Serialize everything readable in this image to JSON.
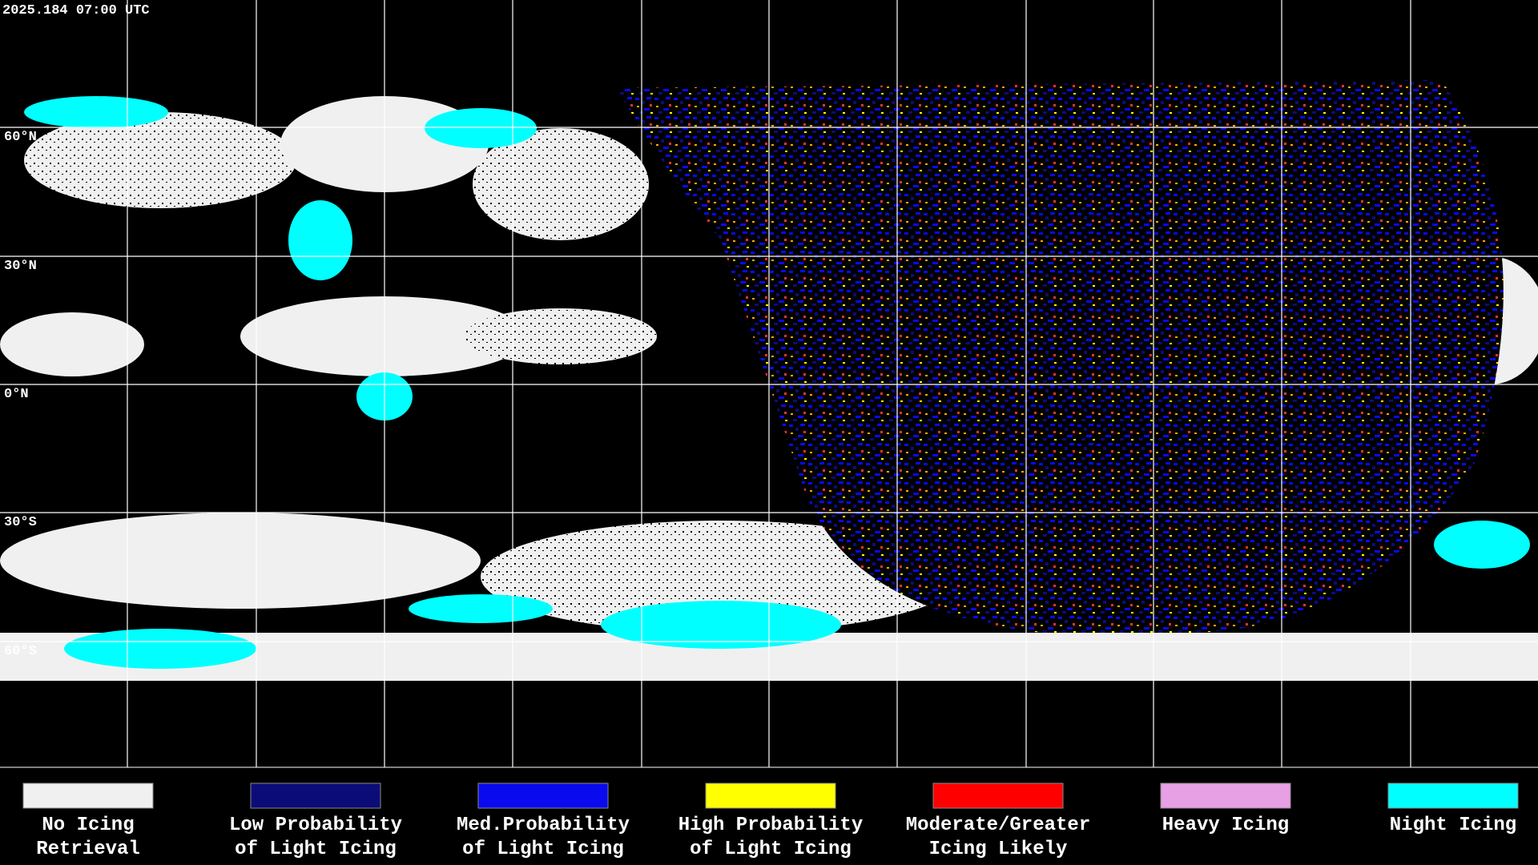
{
  "header": {
    "timestamp": "2025.184 07:00 UTC"
  },
  "map": {
    "lat_labels": [
      "60°N",
      "30°N",
      "0°N",
      "30°S",
      "60°S"
    ]
  },
  "legend": {
    "items": [
      {
        "lines": [
          "No Icing",
          "Retrieval"
        ],
        "color": "#f0f0f0"
      },
      {
        "lines": [
          "Low Probability",
          "of Light Icing"
        ],
        "color": "#0c0c78"
      },
      {
        "lines": [
          "Med.Probability",
          "of Light Icing"
        ],
        "color": "#0a0aef"
      },
      {
        "lines": [
          "High Probability",
          "of Light Icing"
        ],
        "color": "#ffff00"
      },
      {
        "lines": [
          "Moderate/Greater",
          "Icing Likely"
        ],
        "color": "#ff0000"
      },
      {
        "lines": [
          "Heavy Icing"
        ],
        "color": "#e8a0e4"
      },
      {
        "lines": [
          "Night Icing"
        ],
        "color": "#00ffff"
      }
    ]
  }
}
